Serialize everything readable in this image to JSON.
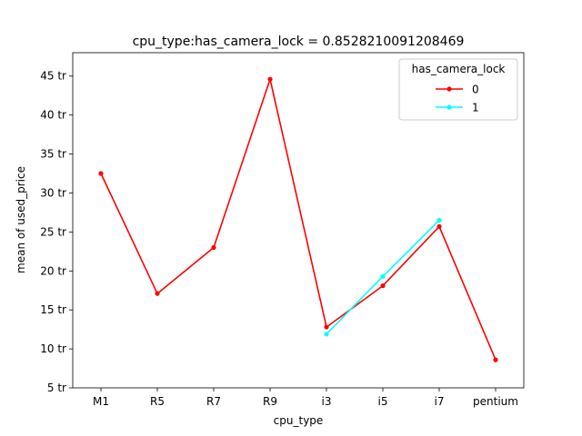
{
  "chart_data": {
    "type": "line",
    "title": "cpu_type:has_camera_lock = 0.8528210091208469",
    "xlabel": "cpu_type",
    "ylabel": "mean of used_price",
    "categories": [
      "M1",
      "R5",
      "R7",
      "R9",
      "i3",
      "i5",
      "i7",
      "pentium"
    ],
    "ylim": [
      5,
      48
    ],
    "yticks": [
      {
        "value": 5,
        "label": "5 tr"
      },
      {
        "value": 10,
        "label": "10 tr"
      },
      {
        "value": 15,
        "label": "15 tr"
      },
      {
        "value": 20,
        "label": "20 tr"
      },
      {
        "value": 25,
        "label": "25 tr"
      },
      {
        "value": 30,
        "label": "30 tr"
      },
      {
        "value": 35,
        "label": "35 tr"
      },
      {
        "value": 40,
        "label": "40 tr"
      },
      {
        "value": 45,
        "label": "45 tr"
      }
    ],
    "grid": false,
    "legend": {
      "title": "has_camera_lock",
      "placement": "top-right"
    },
    "series": [
      {
        "name": "0",
        "color": "#ff0000",
        "values": [
          32.5,
          17.1,
          23.0,
          44.6,
          12.8,
          18.1,
          25.7,
          8.6
        ]
      },
      {
        "name": "1",
        "color": "#00ffff",
        "values": [
          null,
          null,
          null,
          null,
          11.9,
          19.3,
          26.5,
          null
        ]
      }
    ]
  }
}
